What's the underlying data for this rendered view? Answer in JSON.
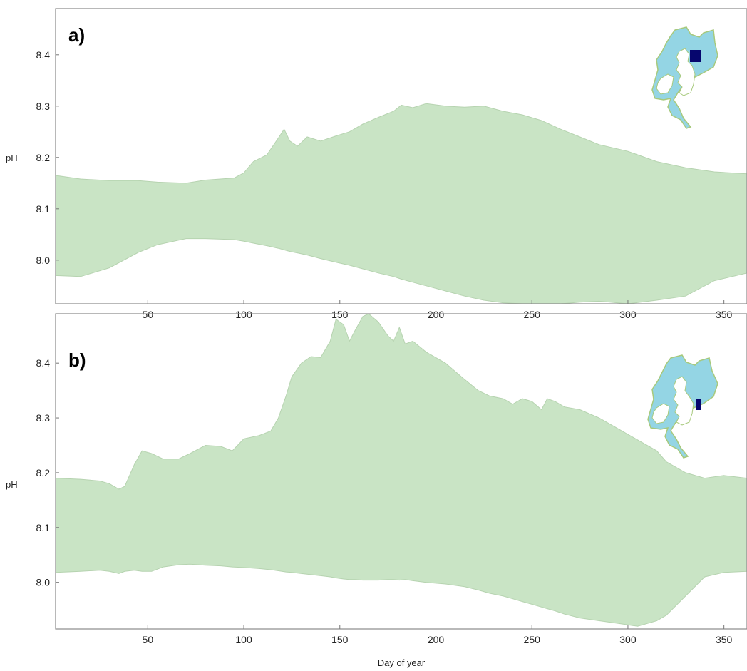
{
  "chart_data": [
    {
      "type": "area",
      "panel_label": "a)",
      "xlabel": "",
      "ylabel": "pH",
      "xlim": [
        2,
        362
      ],
      "ylim": [
        7.915,
        8.49
      ],
      "x_ticks": [
        50,
        100,
        150,
        200,
        250,
        300,
        350
      ],
      "y_ticks": [
        8.0,
        8.1,
        8.2,
        8.3,
        8.4
      ],
      "grid": false,
      "fill_color": "#c9e4c5",
      "inset_map": {
        "sea_color": "#94d5e4",
        "land_color": "#ffffff",
        "outline_color": "#a7c97c",
        "marker_color": "#06066e",
        "marker": "northern-north-sea-box"
      },
      "series": [
        {
          "x": [
            2,
            15,
            30,
            45,
            55,
            70,
            80,
            95,
            100,
            105,
            112,
            118,
            121,
            124,
            128,
            133,
            140,
            148,
            155,
            162,
            170,
            178,
            182,
            188,
            195,
            205,
            215,
            225,
            235,
            245,
            255,
            265,
            275,
            285,
            300,
            315,
            330,
            345,
            362
          ],
          "upper": [
            8.165,
            8.158,
            8.155,
            8.155,
            8.152,
            8.15,
            8.156,
            8.16,
            8.17,
            8.192,
            8.205,
            8.238,
            8.255,
            8.232,
            8.222,
            8.24,
            8.232,
            8.242,
            8.25,
            8.265,
            8.278,
            8.29,
            8.302,
            8.297,
            8.305,
            8.3,
            8.298,
            8.3,
            8.29,
            8.283,
            8.272,
            8.255,
            8.24,
            8.225,
            8.212,
            8.192,
            8.18,
            8.172,
            8.168
          ],
          "lower": [
            7.97,
            7.968,
            7.985,
            8.015,
            8.03,
            8.042,
            8.042,
            8.04,
            8.037,
            8.033,
            8.028,
            8.023,
            8.02,
            8.017,
            8.014,
            8.01,
            8.003,
            7.996,
            7.99,
            7.983,
            7.975,
            7.968,
            7.963,
            7.957,
            7.95,
            7.94,
            7.93,
            7.922,
            7.917,
            7.915,
            7.912,
            7.915,
            7.918,
            7.92,
            7.915,
            7.922,
            7.93,
            7.96,
            7.975
          ]
        }
      ]
    },
    {
      "type": "area",
      "panel_label": "b)",
      "xlabel": "Day of year",
      "ylabel": "pH",
      "xlim": [
        2,
        362
      ],
      "ylim": [
        7.915,
        8.49
      ],
      "x_ticks": [
        50,
        100,
        150,
        200,
        250,
        300,
        350
      ],
      "y_ticks": [
        8.0,
        8.1,
        8.2,
        8.3,
        8.4
      ],
      "grid": false,
      "fill_color": "#c9e4c5",
      "inset_map": {
        "sea_color": "#94d5e4",
        "land_color": "#ffffff",
        "outline_color": "#a7c97c",
        "marker_color": "#06066e",
        "marker": "southern-north-sea-box"
      },
      "series": [
        {
          "x": [
            2,
            15,
            25,
            30,
            35,
            38,
            43,
            47,
            52,
            58,
            66,
            72,
            80,
            88,
            94,
            100,
            108,
            114,
            118,
            122,
            125,
            130,
            135,
            140,
            145,
            148,
            152,
            155,
            158,
            162,
            165,
            170,
            175,
            178,
            181,
            184,
            188,
            195,
            205,
            215,
            222,
            228,
            235,
            240,
            245,
            250,
            255,
            258,
            262,
            267,
            275,
            285,
            295,
            305,
            315,
            320,
            330,
            340,
            350,
            362
          ],
          "upper": [
            8.19,
            8.188,
            8.185,
            8.18,
            8.17,
            8.175,
            8.215,
            8.24,
            8.235,
            8.225,
            8.225,
            8.235,
            8.25,
            8.248,
            8.24,
            8.262,
            8.268,
            8.276,
            8.3,
            8.34,
            8.375,
            8.4,
            8.412,
            8.41,
            8.44,
            8.48,
            8.47,
            8.44,
            8.46,
            8.485,
            8.49,
            8.475,
            8.45,
            8.44,
            8.465,
            8.435,
            8.44,
            8.42,
            8.4,
            8.37,
            8.35,
            8.34,
            8.335,
            8.325,
            8.335,
            8.33,
            8.315,
            8.335,
            8.33,
            8.32,
            8.315,
            8.3,
            8.28,
            8.26,
            8.24,
            8.22,
            8.2,
            8.19,
            8.195,
            8.19
          ],
          "lower": [
            8.018,
            8.02,
            8.022,
            8.02,
            8.016,
            8.02,
            8.022,
            8.02,
            8.02,
            8.028,
            8.032,
            8.033,
            8.031,
            8.03,
            8.028,
            8.027,
            8.025,
            8.023,
            8.021,
            8.019,
            8.018,
            8.016,
            8.014,
            8.012,
            8.01,
            8.008,
            8.006,
            8.005,
            8.005,
            8.004,
            8.004,
            8.004,
            8.005,
            8.005,
            8.004,
            8.005,
            8.003,
            8.0,
            7.997,
            7.992,
            7.986,
            7.98,
            7.975,
            7.97,
            7.965,
            7.96,
            7.955,
            7.952,
            7.948,
            7.942,
            7.935,
            7.93,
            7.925,
            7.92,
            7.93,
            7.94,
            7.975,
            8.01,
            8.018,
            8.02
          ]
        }
      ]
    }
  ]
}
